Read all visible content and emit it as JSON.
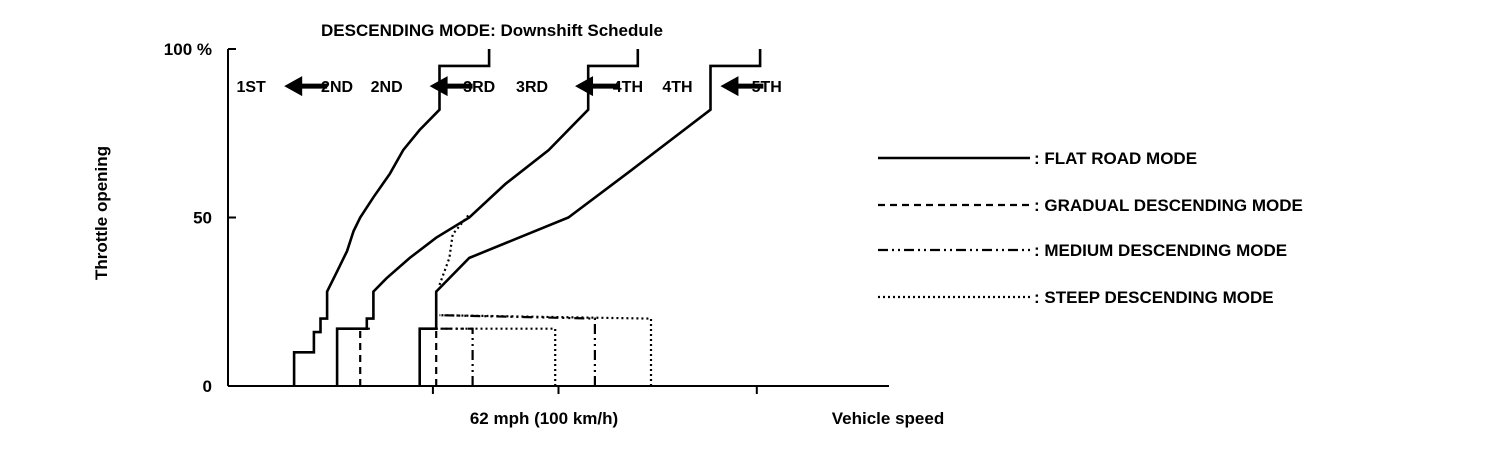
{
  "chart_data": {
    "type": "line",
    "title": "DESCENDING MODE: Downshift Schedule",
    "xlabel": "Vehicle speed",
    "ylabel": "Throttle opening",
    "x_tick_label": "62 mph (100 km/h)",
    "x_tick_value": 62,
    "y_ticks": [
      "0",
      "50",
      "100 %"
    ],
    "y_tick_values": [
      0,
      50,
      100
    ],
    "xlim": [
      0,
      200
    ],
    "ylim": [
      0,
      100
    ],
    "grid": false,
    "legend_position": "right",
    "colors": {
      "line": "#000000",
      "background": "#ffffff"
    },
    "gear_labels": [
      {
        "text": "1ST",
        "x": 7,
        "y": 89
      },
      {
        "text": "2ND",
        "x": 33,
        "y": 89
      },
      {
        "text": "2ND",
        "x": 48,
        "y": 89
      },
      {
        "text": "3RD",
        "x": 76,
        "y": 89
      },
      {
        "text": "3RD",
        "x": 92,
        "y": 89
      },
      {
        "text": "4TH",
        "x": 121,
        "y": 89
      },
      {
        "text": "4TH",
        "x": 136,
        "y": 89
      },
      {
        "text": "5TH",
        "x": 163,
        "y": 89
      }
    ],
    "arrows": [
      {
        "x_from": 30,
        "x_to": 17,
        "y": 89
      },
      {
        "x_from": 74,
        "x_to": 61,
        "y": 89
      },
      {
        "x_from": 118,
        "x_to": 105,
        "y": 89
      },
      {
        "x_from": 162,
        "x_to": 149,
        "y": 89
      }
    ],
    "series": [
      {
        "name": "FLAT ROAD MODE",
        "dash": "solid",
        "lines": [
          [
            [
              20,
              0
            ],
            [
              20,
              10
            ],
            [
              26,
              10
            ],
            [
              26,
              16
            ],
            [
              28,
              16
            ],
            [
              28,
              20
            ],
            [
              30,
              20
            ],
            [
              30,
              28
            ],
            [
              33,
              34
            ],
            [
              36,
              40
            ],
            [
              38,
              46
            ],
            [
              40,
              50
            ],
            [
              44,
              56
            ],
            [
              49,
              63
            ],
            [
              53,
              70
            ],
            [
              58,
              76
            ],
            [
              64,
              82
            ],
            [
              64,
              95
            ],
            [
              79,
              95
            ],
            [
              79,
              100
            ]
          ],
          [
            [
              33,
              0
            ],
            [
              33,
              17
            ],
            [
              42,
              17
            ],
            [
              42,
              20
            ],
            [
              44,
              20
            ],
            [
              44,
              28
            ],
            [
              48,
              32
            ],
            [
              55,
              38
            ],
            [
              63,
              44
            ],
            [
              73,
              50
            ],
            [
              84,
              60
            ],
            [
              97,
              70
            ],
            [
              109,
              82
            ],
            [
              109,
              95
            ],
            [
              124,
              95
            ],
            [
              124,
              100
            ]
          ],
          [
            [
              58,
              0
            ],
            [
              58,
              17
            ],
            [
              63,
              17
            ],
            [
              63,
              28
            ],
            [
              73,
              38
            ],
            [
              88,
              44
            ],
            [
              103,
              50
            ],
            [
              122,
              64
            ],
            [
              146,
              82
            ],
            [
              146,
              95
            ],
            [
              161,
              95
            ],
            [
              161,
              100
            ]
          ]
        ]
      },
      {
        "name": "GRADUAL DESCENDING MODE",
        "dash": "dashed",
        "lines": [
          [
            [
              40,
              0
            ],
            [
              40,
              17
            ],
            [
              44,
              17
            ]
          ],
          [
            [
              63,
              0
            ],
            [
              63,
              17
            ]
          ]
        ]
      },
      {
        "name": "MEDIUM DESCENDING MODE",
        "dash": "dashdotdot",
        "lines": [
          [
            [
              74,
              0
            ],
            [
              74,
              17
            ],
            [
              63,
              17
            ]
          ],
          [
            [
              111,
              0
            ],
            [
              111,
              20
            ],
            [
              64,
              21
            ]
          ]
        ]
      },
      {
        "name": "STEEP DESCENDING MODE",
        "dash": "dotted",
        "lines": [
          [
            [
              99,
              0
            ],
            [
              99,
              17
            ],
            [
              63,
              17
            ]
          ],
          [
            [
              128,
              0
            ],
            [
              128,
              20
            ],
            [
              64,
              21
            ]
          ],
          [
            [
              64,
              30
            ],
            [
              67,
              38
            ],
            [
              68,
              45
            ],
            [
              73,
              51
            ]
          ]
        ]
      }
    ]
  }
}
